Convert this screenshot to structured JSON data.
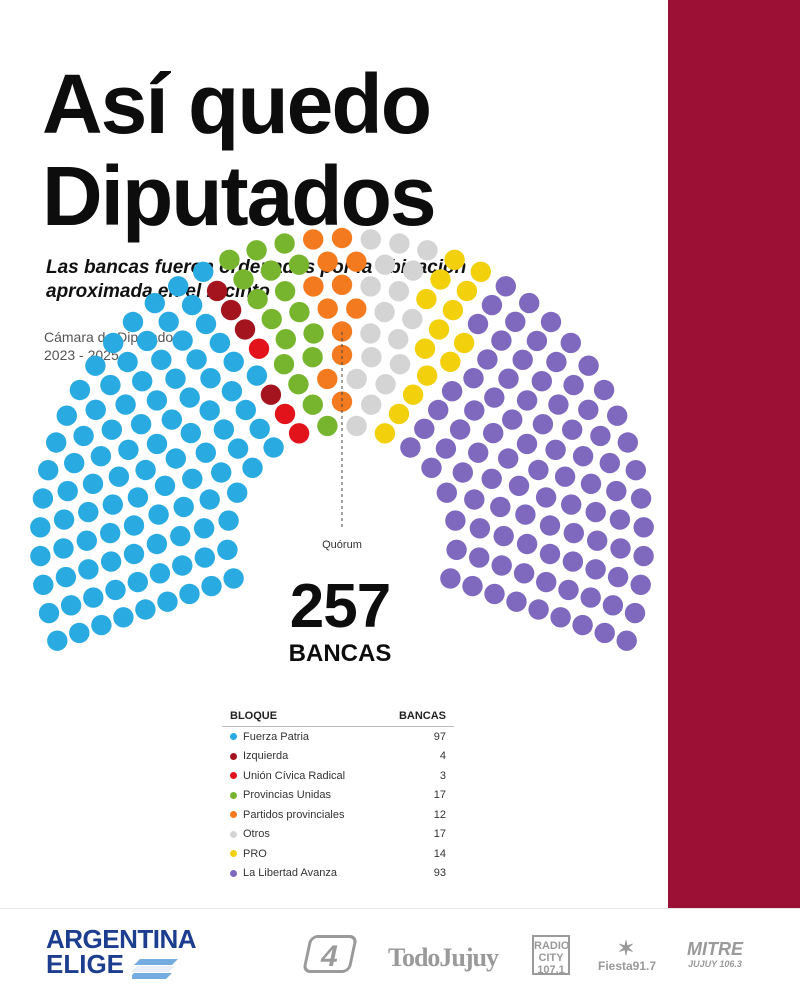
{
  "title": {
    "line1": "Así quedo",
    "line2": "Diputados"
  },
  "subtitle": {
    "line1": "Las bancas fueron ordenadas por la ubicación",
    "line2": "aproximada en el recinto"
  },
  "chamber": {
    "name": "Cámara de Diputados",
    "period": "2023 - 2025"
  },
  "quorum_label": "Quórum",
  "total": {
    "number": "257",
    "label": "BANCAS"
  },
  "legend": {
    "header_bloc": "BLOQUE",
    "header_seats": "BANCAS"
  },
  "chart_data": {
    "type": "parliament",
    "title": "Así quedo Diputados",
    "total_seats": 257,
    "series": [
      {
        "name": "Fuerza Patria",
        "seats": 97,
        "color": "#29abe2"
      },
      {
        "name": "Izquierda",
        "seats": 4,
        "color": "#a4141f"
      },
      {
        "name": "Unión Cívica Radical",
        "seats": 3,
        "color": "#e3131b"
      },
      {
        "name": "Provincias Unidas",
        "seats": 17,
        "color": "#77b52e"
      },
      {
        "name": "Partidos provinciales",
        "seats": 12,
        "color": "#f47a20"
      },
      {
        "name": "Otros",
        "seats": 17,
        "color": "#d4d4d4"
      },
      {
        "name": "PRO",
        "seats": 14,
        "color": "#f2d10c"
      },
      {
        "name": "La Libertad Avanza",
        "seats": 93,
        "color": "#7e69bf"
      }
    ]
  },
  "footer": {
    "argentina_elige": {
      "line1": "ARGENTINA",
      "line2": "ELIGE"
    },
    "logos": {
      "canal4": "4",
      "todojujuy": "TodoJujuy",
      "radio_city": "RADIO CITY 107.1",
      "fiesta": "Fiesta91.7",
      "mitre": "MITRE",
      "mitre_sub": "JUJUY 106.3"
    }
  },
  "colors": {
    "side_bar": "#9b1034",
    "brand_blue": "#1d3d8f",
    "logo_gray": "#9a9a9a"
  }
}
